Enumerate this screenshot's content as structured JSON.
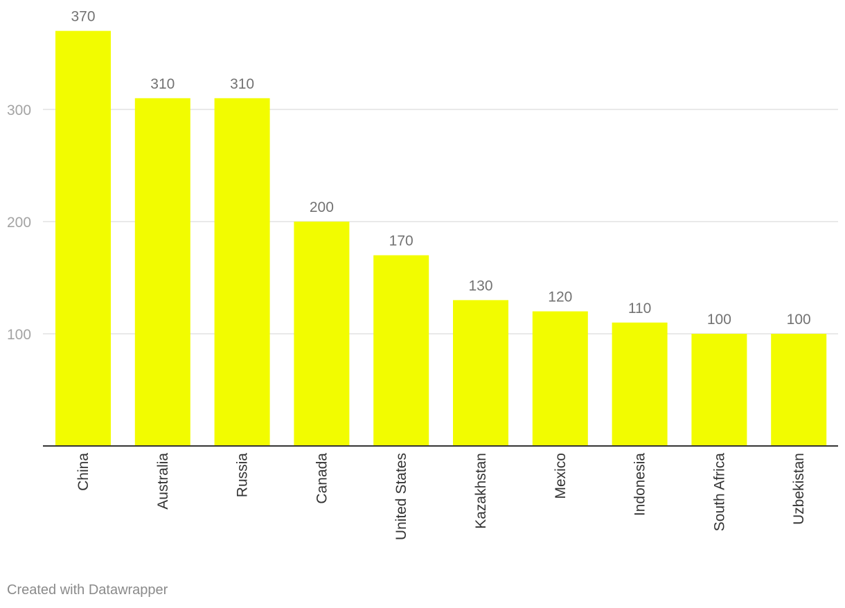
{
  "chart_data": {
    "type": "bar",
    "categories": [
      "China",
      "Australia",
      "Russia",
      "Canada",
      "United States",
      "Kazakhstan",
      "Mexico",
      "Indonesia",
      "South Africa",
      "Uzbekistan"
    ],
    "values": [
      370,
      310,
      310,
      200,
      170,
      130,
      120,
      110,
      100,
      100
    ],
    "value_labels": [
      "370",
      "310",
      "310",
      "200",
      "170",
      "130",
      "120",
      "110",
      "100",
      "100"
    ],
    "yticks": [
      100,
      200,
      300
    ],
    "ylim": [
      0,
      370
    ],
    "grid": true,
    "bar_color": "#f2fc00",
    "gridline_color": "#e2e2e2",
    "baseline_color": "#333333",
    "tick_label_color": "#a3a3a3",
    "value_label_color": "#727272",
    "category_label_color": "#333333"
  },
  "footer": {
    "credit": "Created with Datawrapper"
  }
}
